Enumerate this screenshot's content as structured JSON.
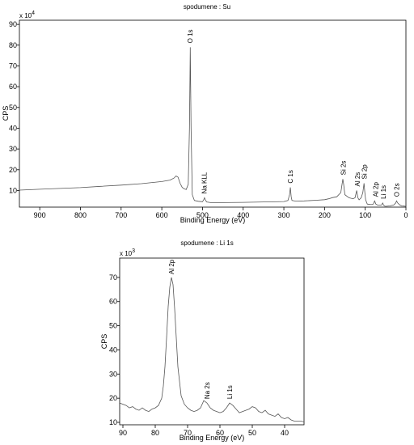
{
  "chart_data": [
    {
      "type": "line",
      "title": "spodumene : Su",
      "xlabel": "Binding Energy (eV)",
      "ylabel": "CPS",
      "y_multiplier": "x 10",
      "y_exponent": "4",
      "xlim": [
        950,
        0
      ],
      "ylim": [
        2,
        92
      ],
      "x_reversed": true,
      "x_ticks": [
        900,
        800,
        700,
        600,
        500,
        400,
        300,
        200,
        100,
        0
      ],
      "y_ticks": [
        10,
        20,
        30,
        40,
        50,
        60,
        70,
        80,
        90
      ],
      "grid": false,
      "series": [
        {
          "x": [
            950,
            900,
            850,
            800,
            750,
            700,
            650,
            600,
            580,
            570,
            565,
            560,
            555,
            550,
            545,
            540,
            535,
            532,
            530,
            528,
            525,
            520,
            510,
            500,
            497,
            495,
            493,
            490,
            480,
            450,
            400,
            350,
            300,
            290,
            286,
            284,
            282,
            280,
            270,
            250,
            220,
            200,
            190,
            180,
            170,
            160,
            157,
            155,
            153,
            150,
            140,
            130,
            125,
            121,
            118,
            115,
            110,
            106,
            103,
            101,
            99,
            95,
            85,
            80,
            77,
            74,
            70,
            60,
            57,
            55,
            52,
            50,
            40,
            30,
            25,
            23,
            20,
            15,
            10,
            5,
            0
          ],
          "y": [
            10.2,
            10.6,
            11.0,
            11.4,
            12.0,
            12.6,
            13.3,
            14.3,
            15.0,
            16.0,
            17.0,
            16.4,
            13.5,
            11.5,
            10.8,
            10.5,
            13.0,
            40.0,
            79.0,
            40.0,
            8.0,
            5.2,
            4.8,
            4.6,
            5.5,
            6.5,
            5.5,
            4.5,
            4.2,
            4.2,
            4.3,
            4.5,
            4.7,
            5.2,
            8.0,
            11.5,
            7.0,
            5.2,
            4.9,
            5.0,
            5.3,
            5.6,
            6.0,
            6.6,
            7.0,
            9.0,
            13.0,
            15.5,
            13.0,
            8.0,
            6.5,
            6.0,
            6.5,
            10.0,
            6.5,
            5.5,
            6.5,
            9.0,
            13.5,
            9.0,
            5.5,
            3.5,
            3.2,
            3.5,
            5.0,
            3.5,
            3.0,
            3.0,
            4.0,
            3.0,
            2.5,
            2.4,
            2.6,
            3.0,
            4.0,
            5.0,
            4.0,
            3.0,
            2.6,
            2.5,
            2.4
          ]
        }
      ],
      "annotations": [
        {
          "text": "O 1s",
          "x": 531
        },
        {
          "text": "Na KLL",
          "x": 496
        },
        {
          "text": "C 1s",
          "x": 284
        },
        {
          "text": "Si 2s",
          "x": 154
        },
        {
          "text": "Al 2s",
          "x": 119
        },
        {
          "text": "Si 2p",
          "x": 102
        },
        {
          "text": "Al 2p",
          "x": 75
        },
        {
          "text": "Li 1s",
          "x": 56
        },
        {
          "text": "O 2s",
          "x": 23
        }
      ]
    },
    {
      "type": "line",
      "title": "spodumene : Li 1s",
      "xlabel": "Binding Energy (eV)",
      "ylabel": "CPS",
      "y_multiplier": "x 10",
      "y_exponent": "3",
      "xlim": [
        91,
        34
      ],
      "ylim": [
        9,
        78
      ],
      "x_reversed": true,
      "x_ticks": [
        90,
        80,
        70,
        60,
        50,
        40
      ],
      "y_ticks": [
        10,
        20,
        30,
        40,
        50,
        60,
        70
      ],
      "grid": false,
      "series": [
        {
          "x": [
            91,
            90,
            89,
            88,
            87,
            86,
            85,
            84,
            83,
            82,
            81,
            80,
            79,
            78,
            77.5,
            77,
            76.5,
            76,
            75.5,
            75,
            74.5,
            74,
            73.5,
            73,
            72,
            71,
            70,
            69,
            68,
            67,
            66,
            65,
            64,
            63,
            62,
            61,
            60,
            59,
            58,
            57,
            56,
            55,
            54,
            53,
            52,
            51,
            50,
            49,
            48,
            47,
            46,
            45,
            44,
            43,
            42,
            41,
            40,
            39,
            38,
            37,
            36,
            35,
            34
          ],
          "y": [
            18,
            17.5,
            17,
            16,
            16.5,
            15.5,
            15,
            16,
            15,
            14.5,
            15.5,
            16,
            17,
            20,
            25,
            33,
            45,
            58,
            66,
            70,
            67,
            57,
            45,
            33,
            21,
            17.5,
            16,
            15,
            14.5,
            15,
            16,
            19,
            18,
            16,
            15,
            14.5,
            14,
            14.5,
            16,
            18,
            17,
            15.5,
            14,
            14.5,
            15,
            15.5,
            16.5,
            16,
            14.5,
            14,
            15,
            13.5,
            13,
            12.5,
            13.5,
            12,
            11.5,
            12,
            11,
            10.5,
            10.5,
            10.5,
            10.2
          ]
        }
      ],
      "annotations": [
        {
          "text": "Al 2p",
          "x": 75
        },
        {
          "text": "Na 2s",
          "x": 64
        },
        {
          "text": "Li 1s",
          "x": 57
        }
      ]
    }
  ]
}
